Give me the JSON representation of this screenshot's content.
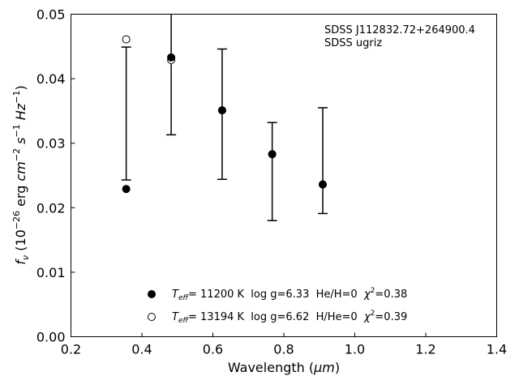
{
  "chart_data": {
    "type": "scatter",
    "xlabel_prefix": "Wavelength (",
    "xlabel_unit": "μm",
    "xlabel_suffix": ")",
    "ylabel_symbol": "f",
    "ylabel_symbol_sub": "ν",
    "ylabel_open": " (10",
    "ylabel_exp1": "−26",
    "ylabel_erg": " erg ",
    "ylabel_cm": "cm",
    "ylabel_exp2": "−2",
    "ylabel_s": " s",
    "ylabel_exp3": "−1",
    "ylabel_hz": " Hz",
    "ylabel_exp4": "−1",
    "ylabel_close": ")",
    "xlim": [
      0.2,
      1.4
    ],
    "ylim": [
      0.0,
      0.05
    ],
    "xticks": [
      0.2,
      0.4,
      0.6,
      0.8,
      1.0,
      1.2,
      1.4
    ],
    "xtick_labels": [
      "0.2",
      "0.4",
      "0.6",
      "0.8",
      "1.0",
      "1.2",
      "1.4"
    ],
    "yticks": [
      0.0,
      0.01,
      0.02,
      0.03,
      0.04,
      0.05
    ],
    "ytick_labels": [
      "0.00",
      "0.01",
      "0.02",
      "0.03",
      "0.04",
      "0.05"
    ],
    "annotation_lines": [
      "SDSS J112832.72+264900.4",
      "SDSS ugriz"
    ],
    "legend_placement": "bottom-center",
    "grid": false,
    "observed": {
      "x": [
        0.3557,
        0.4825,
        0.6261,
        0.7672,
        0.9097
      ],
      "y": [
        0.0346,
        0.0445,
        0.0345,
        0.0256,
        0.0273
      ],
      "yerr": [
        0.0103,
        0.0132,
        0.0101,
        0.0076,
        0.0082
      ]
    },
    "series": [
      {
        "marker": "filled-circle",
        "x": [
          0.3557,
          0.4825,
          0.6261,
          0.7672,
          0.9097
        ],
        "y": [
          0.0229,
          0.0433,
          0.0351,
          0.0283,
          0.0236
        ],
        "legend": {
          "teff_T": "T",
          "teff_sub": "eff",
          "text1": "= 11200 K  log g=6.33  He/H=0  ",
          "chi": "χ",
          "chi_exp": "2",
          "text2": "=0.38"
        }
      },
      {
        "marker": "open-circle",
        "x": [
          0.3557,
          0.4825,
          0.6261,
          0.7672,
          0.9097
        ],
        "y": [
          0.0461,
          0.0429,
          0.0351,
          0.0283,
          0.0236
        ],
        "legend": {
          "teff_T": "T",
          "teff_sub": "eff",
          "text1": "= 13194 K  log g=6.62  H/He=0  ",
          "chi": "χ",
          "chi_exp": "2",
          "text2": "=0.39"
        }
      }
    ]
  }
}
